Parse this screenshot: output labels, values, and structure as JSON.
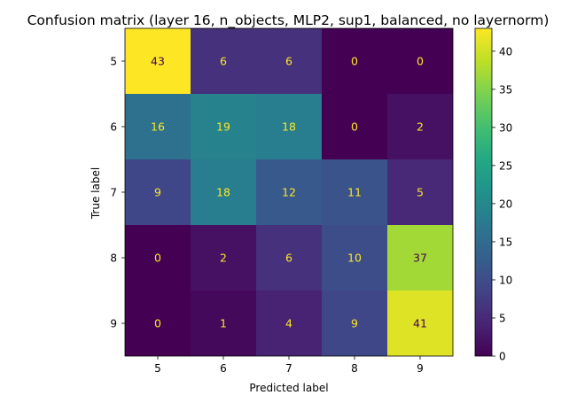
{
  "chart_data": {
    "type": "heatmap",
    "title": "Confusion matrix (layer 16, n_objects, MLP2, sup1, balanced, no layernorm)",
    "xlabel": "Predicted label",
    "ylabel": "True label",
    "x_categories": [
      "5",
      "6",
      "7",
      "8",
      "9"
    ],
    "y_categories": [
      "5",
      "6",
      "7",
      "8",
      "9"
    ],
    "values": [
      [
        43,
        6,
        6,
        0,
        0
      ],
      [
        16,
        19,
        18,
        0,
        2
      ],
      [
        9,
        18,
        12,
        11,
        5
      ],
      [
        0,
        2,
        6,
        10,
        37
      ],
      [
        0,
        1,
        4,
        9,
        41
      ]
    ],
    "colormap": "viridis",
    "colorbar": {
      "range": [
        0,
        43
      ],
      "ticks": [
        0,
        5,
        10,
        15,
        20,
        25,
        30,
        35,
        40
      ]
    },
    "annotation_colors": {
      "light": "#fde725",
      "dark": "#440154"
    }
  }
}
